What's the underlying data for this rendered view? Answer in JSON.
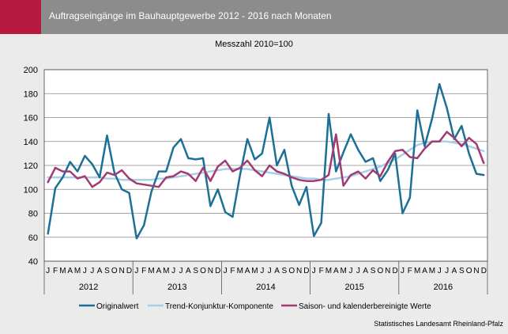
{
  "header": {
    "title": "Auftragseingänge im Bauhauptgewerbe 2012 - 2016 nach Monaten",
    "accent_color": "#b5193d",
    "bar_color": "#8c8c8c"
  },
  "chart_data": {
    "type": "line",
    "subtitle": "Messzahl 2010=100",
    "ylim": [
      40,
      200
    ],
    "yticks": [
      40,
      60,
      80,
      100,
      120,
      140,
      160,
      180,
      200
    ],
    "grid": true,
    "legend_position": "bottom",
    "month_labels": [
      "J",
      "F",
      "M",
      "A",
      "M",
      "J",
      "J",
      "A",
      "S",
      "O",
      "N",
      "D"
    ],
    "years": [
      "2012",
      "2013",
      "2014",
      "2015",
      "2016"
    ],
    "series": [
      {
        "name": "Originalwert",
        "color": "#1c6f95",
        "values": [
          63,
          101,
          110,
          123,
          115,
          128,
          121,
          110,
          145,
          114,
          100,
          97,
          59,
          70,
          98,
          115,
          115,
          135,
          142,
          126,
          125,
          126,
          86,
          100,
          81,
          77,
          112,
          142,
          125,
          130,
          160,
          120,
          133,
          103,
          87,
          102,
          61,
          72,
          163,
          115,
          131,
          146,
          133,
          123,
          126,
          107,
          116,
          130,
          80,
          93,
          166,
          136,
          159,
          188,
          168,
          142,
          153,
          130,
          113,
          112
        ]
      },
      {
        "name": "Trend-Konjunktur-Komponente",
        "color": "#a9cfe6",
        "values": [
          110,
          110,
          110,
          110,
          110,
          110,
          110,
          110,
          109,
          109,
          108,
          108,
          108,
          108,
          108,
          109,
          109,
          110,
          111,
          112,
          113,
          114,
          115,
          116,
          117,
          117,
          117,
          117,
          116,
          115,
          114,
          113,
          112,
          111,
          110,
          109,
          109,
          108,
          108,
          109,
          110,
          111,
          113,
          115,
          117,
          119,
          122,
          125,
          129,
          133,
          137,
          139,
          140,
          140,
          140,
          139,
          138,
          136,
          134,
          132
        ]
      },
      {
        "name": "Saison- und kalenderbereinigte Werte",
        "color": "#a23a73",
        "values": [
          106,
          118,
          115,
          115,
          109,
          111,
          102,
          106,
          114,
          112,
          116,
          109,
          105,
          104,
          103,
          102,
          110,
          111,
          115,
          113,
          107,
          118,
          107,
          119,
          124,
          115,
          118,
          124,
          116,
          111,
          120,
          115,
          113,
          110,
          108,
          107,
          107,
          108,
          112,
          146,
          103,
          112,
          115,
          109,
          116,
          111,
          123,
          132,
          133,
          127,
          126,
          134,
          140,
          140,
          148,
          143,
          136,
          143,
          138,
          122
        ]
      }
    ]
  },
  "footer": {
    "source": "Statistisches Landesamt Rheinland-Pfalz"
  }
}
